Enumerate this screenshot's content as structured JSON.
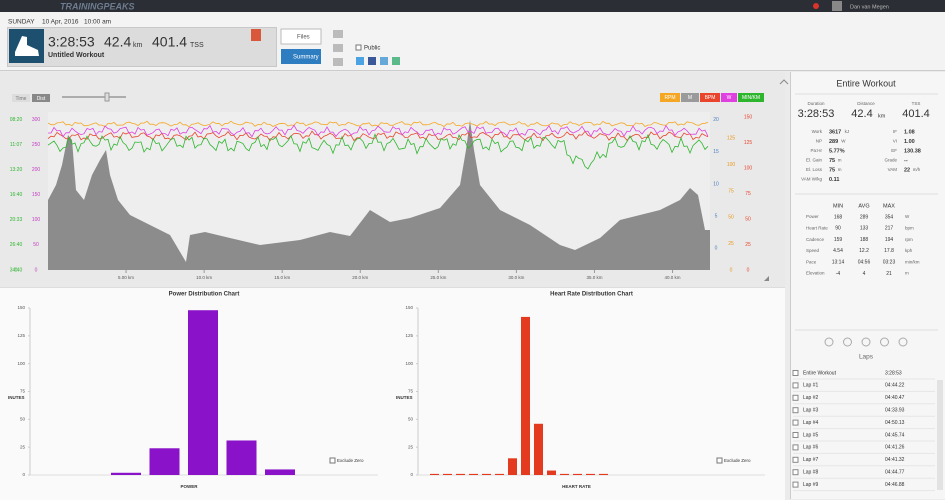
{
  "top_bar": {
    "logo": "TRAININGPEAKS",
    "user": "Dan van Megen"
  },
  "header": {
    "day": "SUNDAY",
    "date": "10 Apr, 2016",
    "time": "10:00 am",
    "duration": "3:28:53",
    "distance": "42.4",
    "distance_unit": "km",
    "tss": "401.4",
    "tss_unit": "TSS",
    "workout_name": "Untitled Workout",
    "files_button": "Files",
    "summary_button": "Summary",
    "public_label": "Public"
  },
  "main_chart": {
    "toggle": [
      "Time",
      "Dist"
    ],
    "legend": [
      {
        "name": "RPM",
        "color": "#f5a623"
      },
      {
        "name": "M",
        "color": "#9a9a9a"
      },
      {
        "name": "BPM",
        "color": "#e8452c"
      },
      {
        "name": "W",
        "color": "#e040e0"
      },
      {
        "name": "MIN/KM",
        "color": "#2db52d"
      }
    ],
    "xlim": [
      0,
      42.4
    ],
    "xticks": [
      {
        "value": 5,
        "label": "5.00 km"
      },
      {
        "value": 10,
        "label": "10.0 km"
      },
      {
        "value": 15,
        "label": "15.0 km"
      },
      {
        "value": 20,
        "label": "20.0 km"
      },
      {
        "value": 25,
        "label": "25.0 km"
      },
      {
        "value": 30,
        "label": "30.0 km"
      },
      {
        "value": 35,
        "label": "35.0 km"
      },
      {
        "value": 40,
        "label": "40.0 km"
      }
    ],
    "pace_labels": [
      "34:40",
      "26:40",
      "20:33",
      "16:40",
      "13:20",
      "11:07",
      "08:20",
      "0"
    ],
    "power_axis": {
      "color": "#c040c0",
      "ylim": [
        0,
        315
      ],
      "yticks": [
        0,
        50,
        100,
        150,
        200,
        250,
        300
      ]
    },
    "speed_axis": {
      "color": "#4a7fc0",
      "ylim": [
        -3.4,
        21.2
      ],
      "yticks": [
        0,
        5,
        10,
        15,
        20
      ]
    },
    "cadence_axis": {
      "color": "#e89a20",
      "ylim": [
        0,
        150
      ],
      "yticks": [
        0,
        25,
        50,
        75,
        100,
        125
      ]
    },
    "hr_axis": {
      "color": "#e8452c",
      "ylim": [
        0,
        155
      ],
      "yticks": [
        0,
        25,
        50,
        75,
        100,
        125,
        150
      ]
    }
  },
  "power_chart": {
    "type": "bar",
    "title": "Power Distribution Chart",
    "ylabel": "INUTES",
    "xlabel": "POWER",
    "checkbox_label": "Exclude Zero",
    "color": "#8a12c8",
    "categories": [
      null,
      null,
      null,
      null,
      null
    ],
    "values": [
      2,
      24,
      148,
      31,
      5
    ],
    "ylim": [
      0,
      150
    ],
    "yticks": [
      0,
      25,
      50,
      75,
      100,
      125,
      150
    ]
  },
  "hr_chart": {
    "type": "bar",
    "title": "Heart Rate Distribution Chart",
    "ylabel": "INUTES",
    "xlabel": "HEART RATE",
    "checkbox_label": "Exclude Zero",
    "color": "#e43a1f",
    "categories": [
      null,
      null,
      null,
      null,
      null,
      null,
      null,
      null,
      null,
      null,
      null,
      null,
      null,
      null
    ],
    "values": [
      1,
      1,
      1,
      1,
      1,
      1,
      15,
      142,
      46,
      4,
      1,
      1,
      1,
      1
    ],
    "ylim": [
      0,
      150
    ],
    "yticks": [
      0,
      25,
      50,
      75,
      100,
      125,
      150
    ]
  },
  "right_panel": {
    "title": "Entire Workout",
    "summary": [
      {
        "label": "Duration",
        "value": "3:28:53"
      },
      {
        "label": "Distance",
        "value": "42.4",
        "unit": "km"
      },
      {
        "label": "TSS",
        "value": "401.4"
      }
    ],
    "metrics": [
      [
        {
          "label": "Work",
          "value": "3617",
          "unit": "kJ"
        },
        {
          "label": "IF",
          "value": "1.08"
        }
      ],
      [
        {
          "label": "NP",
          "value": "289",
          "unit": "W"
        },
        {
          "label": "VI",
          "value": "1.00"
        }
      ],
      [
        {
          "label": "Pa:Hr",
          "value": "5.77%"
        },
        {
          "label": "EF",
          "value": "130.38"
        }
      ],
      [
        {
          "label": "El. Gain",
          "value": "75",
          "unit": "m"
        },
        {
          "label": "Grade",
          "value": "--"
        }
      ],
      [
        {
          "label": "El. Loss",
          "value": "75",
          "unit": "m"
        },
        {
          "label": "VAM",
          "value": "22",
          "unit": "m/h"
        }
      ],
      [
        {
          "label": "VAM W/kg",
          "value": "0.11"
        }
      ]
    ],
    "table": {
      "headers": [
        "MIN",
        "AVG",
        "MAX"
      ],
      "rows": [
        [
          "Power",
          "168",
          "289",
          "354",
          "W"
        ],
        [
          "Heart Rate",
          "90",
          "133",
          "217",
          "bpm"
        ],
        [
          "Cadence",
          "159",
          "188",
          "194",
          "rpm"
        ],
        [
          "Speed",
          "4.54",
          "12.2",
          "17.8",
          "kph"
        ],
        [
          "Pace",
          "13:14",
          "04:56",
          "03:23",
          "min/km"
        ],
        [
          "Elevation",
          "-4",
          "4",
          "21",
          "m"
        ]
      ]
    },
    "laps": {
      "title": "Laps",
      "rows": [
        [
          "Entire Workout",
          "3:28:53"
        ],
        [
          "Lap #1",
          "04:44.22"
        ],
        [
          "Lap #2",
          "04:40.47"
        ],
        [
          "Lap #3",
          "04:33.93"
        ],
        [
          "Lap #4",
          "04:50.13"
        ],
        [
          "Lap #5",
          "04:45.74"
        ],
        [
          "Lap #6",
          "04:41.26"
        ],
        [
          "Lap #7",
          "04:41.32"
        ],
        [
          "Lap #8",
          "04:44.77"
        ],
        [
          "Lap #9",
          "04:46.88"
        ]
      ]
    }
  }
}
